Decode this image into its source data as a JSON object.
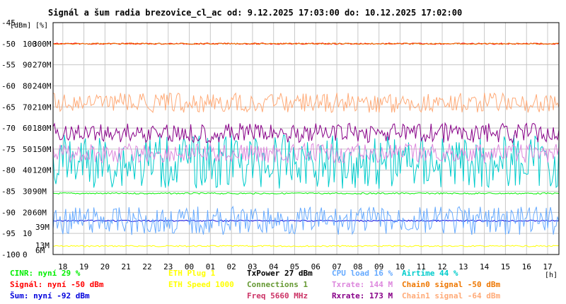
{
  "chart_data": {
    "type": "line",
    "title": "Signál a šum radia brezovice_cl_ac od: 9.12.2025 17:03:00 do: 10.12.2025 17:02:00",
    "y_axis_labels": [
      "[dBm]",
      "[%]"
    ],
    "x_unit": "[h]",
    "x_ticks": [
      "18",
      "19",
      "20",
      "21",
      "22",
      "23",
      "00",
      "01",
      "02",
      "03",
      "04",
      "05",
      "06",
      "07",
      "08",
      "09",
      "10",
      "11",
      "12",
      "13",
      "14",
      "15",
      "16",
      "17"
    ],
    "ylim_dbm": [
      -100,
      -45
    ],
    "y_ticks_dbm": [
      "-45",
      "-50",
      "-55",
      "-60",
      "-65",
      "-70",
      "-75",
      "-80",
      "-85",
      "-90",
      "-95",
      "-100"
    ],
    "y_ticks_pct": [
      "100",
      "90",
      "80",
      "70",
      "60",
      "50",
      "40",
      "30",
      "20",
      "10",
      "0"
    ],
    "y_ticks_rate": [
      "300M",
      "270M",
      "240M",
      "210M",
      "180M",
      "150M",
      "120M",
      "90M",
      "60M"
    ],
    "extra_rate_ticks": [
      {
        "text": "39M",
        "color": "#dd88dd"
      },
      {
        "text": "13M",
        "color": "#ffaa77"
      },
      {
        "text": "6M",
        "color": "#aa00aa"
      }
    ],
    "grid": true,
    "series": [
      {
        "name": "ETH Speed",
        "color": "#ffff00",
        "kind": "flat",
        "level": 1000
      },
      {
        "name": "CINR",
        "color": "#00ee00",
        "kind": "flat",
        "level_pct": 29
      },
      {
        "name": "Signál",
        "color": "#ff0000",
        "kind": "flat",
        "level_dbm": -50
      },
      {
        "name": "Šum",
        "color": "#0000dd",
        "kind": "flat",
        "level_dbm": -92
      },
      {
        "name": "CPU load",
        "color": "#66aaff",
        "kind": "noisy",
        "level_pct": 16
      },
      {
        "name": "Airtime",
        "color": "#00cccc",
        "kind": "noisy",
        "level_pct": 44
      },
      {
        "name": "Txrate",
        "color": "#dd88dd",
        "kind": "noisy",
        "level": 144
      },
      {
        "name": "Rxrate",
        "color": "#880088",
        "kind": "noisy",
        "level": 173
      },
      {
        "name": "Chain0 signal",
        "color": "#ee7700",
        "kind": "flat",
        "level_dbm": -50
      },
      {
        "name": "Chain1 signal",
        "color": "#ffaa77",
        "kind": "noisy",
        "level_dbm": -64
      }
    ]
  },
  "legend": {
    "col1": [
      {
        "text": "CINR: nyní 29 %",
        "color": "#00ee00"
      },
      {
        "text": "Signál: nyní -50 dBm",
        "color": "#ff0000"
      },
      {
        "text": "Šum: nyní -92 dBm",
        "color": "#0000dd"
      }
    ],
    "col2": [
      {
        "text": "ETH Plug 1",
        "color": "#ffff00"
      },
      {
        "text": "ETH Speed 1000",
        "color": "#ffff00"
      }
    ],
    "col3": [
      {
        "text": "TxPower 27 dBm",
        "color": "#000000"
      },
      {
        "text": "Connections 1",
        "color": "#669933"
      },
      {
        "text": "Freq 5660 MHz",
        "color": "#cc3366"
      }
    ],
    "col4": [
      {
        "text": "CPU load 16 %",
        "color": "#66aaff"
      },
      {
        "text": "Txrate: 144 M",
        "color": "#dd88dd"
      },
      {
        "text": "Rxrate: 173 M",
        "color": "#880088"
      }
    ],
    "col5": [
      {
        "text": "Airtime 44 %",
        "color": "#00cccc"
      },
      {
        "text": "Chain0 signal -50 dBm",
        "color": "#ee7700"
      },
      {
        "text": "Chain1 signal -64 dBm",
        "color": "#ffaa77"
      }
    ]
  }
}
